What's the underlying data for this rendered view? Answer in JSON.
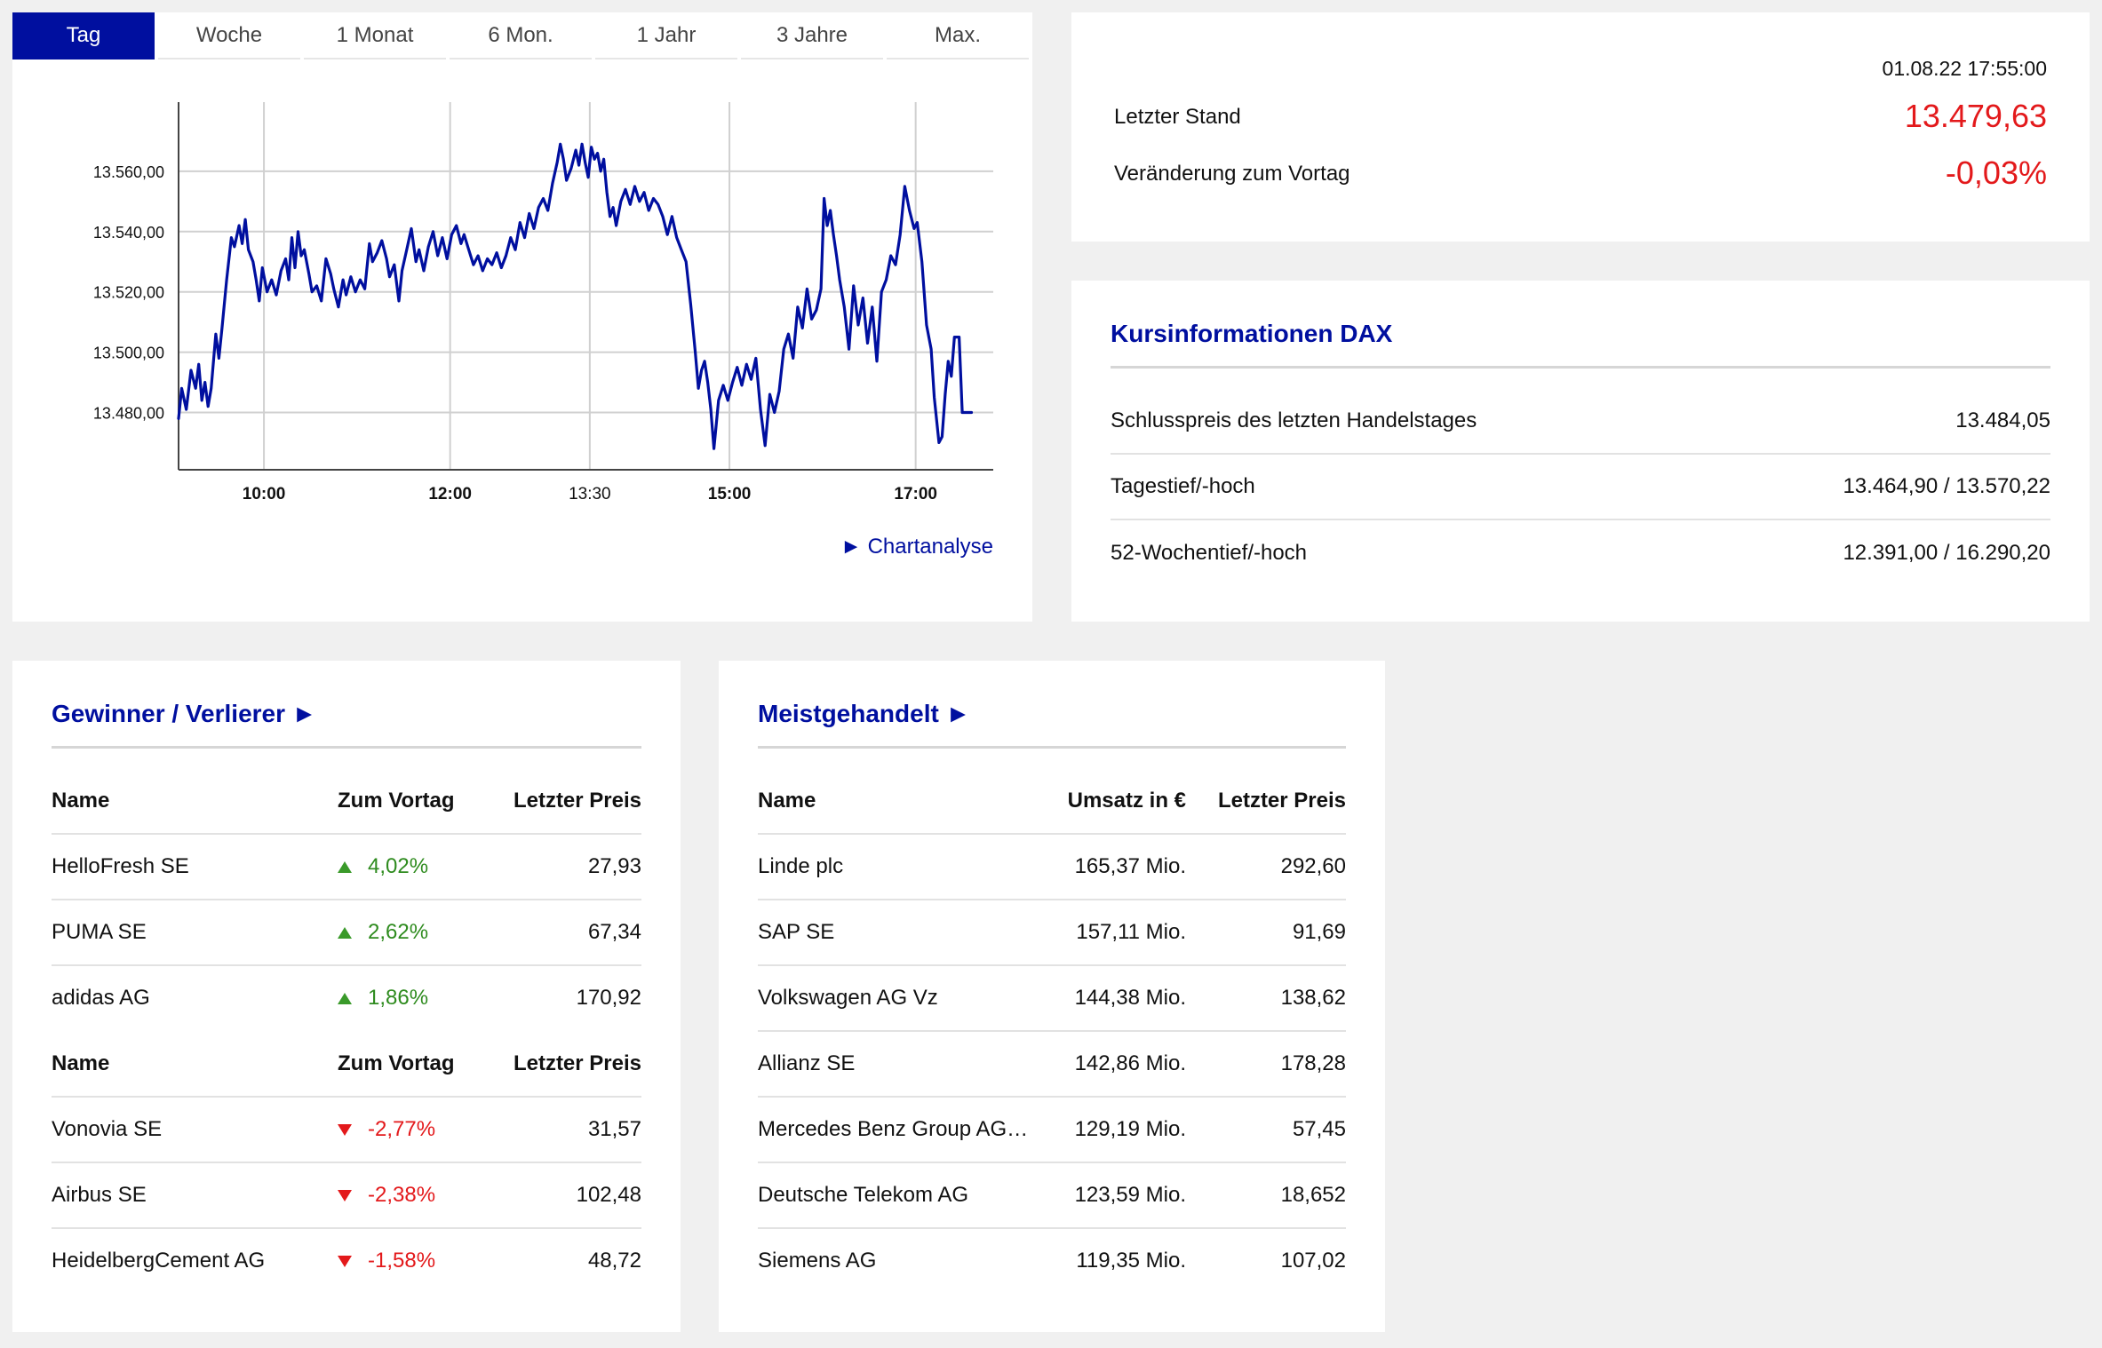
{
  "tabs": [
    "Tag",
    "Woche",
    "1 Monat",
    "6 Mon.",
    "1 Jahr",
    "3 Jahre",
    "Max."
  ],
  "active_tab": "Tag",
  "chart_link": "► Chartanalyse",
  "colors": {
    "accent": "#000f9f",
    "negative": "#e3191b",
    "positive": "#2e8b1e"
  },
  "chart_data": {
    "type": "line",
    "y_ticks": [
      "13.480,00",
      "13.500,00",
      "13.520,00",
      "13.540,00",
      "13.560,00"
    ],
    "y_tick_values": [
      13480,
      13500,
      13520,
      13540,
      13560
    ],
    "x_ticks": [
      {
        "label": "10:00",
        "t": "10:00",
        "bold": true
      },
      {
        "label": "12:00",
        "t": "12:00",
        "bold": true
      },
      {
        "label": "13:30",
        "t": "13:30",
        "bold": false
      },
      {
        "label": "15:00",
        "t": "15:00",
        "bold": true
      },
      {
        "label": "17:00",
        "t": "17:00",
        "bold": true
      }
    ],
    "xlim": [
      "09:05",
      "17:50"
    ],
    "ylim": [
      13461,
      13580
    ],
    "grid": true,
    "series": [
      {
        "color": "#000f9f",
        "points": [
          [
            "09:05",
            13478
          ],
          [
            "09:07",
            13488
          ],
          [
            "09:10",
            13481
          ],
          [
            "09:13",
            13494
          ],
          [
            "09:16",
            13488
          ],
          [
            "09:18",
            13496
          ],
          [
            "09:20",
            13484
          ],
          [
            "09:22",
            13490
          ],
          [
            "09:24",
            13482
          ],
          [
            "09:26",
            13488
          ],
          [
            "09:29",
            13506
          ],
          [
            "09:31",
            13498
          ],
          [
            "09:33",
            13508
          ],
          [
            "09:36",
            13524
          ],
          [
            "09:39",
            13538
          ],
          [
            "09:41",
            13535
          ],
          [
            "09:44",
            13542
          ],
          [
            "09:46",
            13536
          ],
          [
            "09:48",
            13544
          ],
          [
            "09:50",
            13534
          ],
          [
            "09:53",
            13530
          ],
          [
            "09:55",
            13524
          ],
          [
            "09:57",
            13517
          ],
          [
            "09:59",
            13528
          ],
          [
            "10:02",
            13520
          ],
          [
            "10:05",
            13524
          ],
          [
            "10:08",
            13519
          ],
          [
            "10:11",
            13527
          ],
          [
            "10:14",
            13531
          ],
          [
            "10:16",
            13524
          ],
          [
            "10:18",
            13538
          ],
          [
            "10:20",
            13528
          ],
          [
            "10:22",
            13540
          ],
          [
            "10:24",
            13532
          ],
          [
            "10:26",
            13534
          ],
          [
            "10:29",
            13526
          ],
          [
            "10:31",
            13520
          ],
          [
            "10:34",
            13522
          ],
          [
            "10:37",
            13517
          ],
          [
            "10:40",
            13531
          ],
          [
            "10:43",
            13526
          ],
          [
            "10:45",
            13521
          ],
          [
            "10:48",
            13515
          ],
          [
            "10:51",
            13524
          ],
          [
            "10:53",
            13519
          ],
          [
            "10:56",
            13525
          ],
          [
            "10:59",
            13520
          ],
          [
            "11:02",
            13524
          ],
          [
            "11:05",
            13521
          ],
          [
            "11:08",
            13536
          ],
          [
            "11:10",
            13530
          ],
          [
            "11:13",
            13533
          ],
          [
            "11:16",
            13537
          ],
          [
            "11:19",
            13531
          ],
          [
            "11:21",
            13525
          ],
          [
            "11:24",
            13529
          ],
          [
            "11:27",
            13517
          ],
          [
            "11:29",
            13527
          ],
          [
            "11:32",
            13534
          ],
          [
            "11:35",
            13541
          ],
          [
            "11:38",
            13530
          ],
          [
            "11:40",
            13534
          ],
          [
            "11:43",
            13527
          ],
          [
            "11:46",
            13535
          ],
          [
            "11:49",
            13540
          ],
          [
            "11:52",
            13532
          ],
          [
            "11:55",
            13538
          ],
          [
            "11:58",
            13531
          ],
          [
            "12:01",
            13539
          ],
          [
            "12:04",
            13542
          ],
          [
            "12:07",
            13536
          ],
          [
            "12:09",
            13539
          ],
          [
            "12:12",
            13534
          ],
          [
            "12:15",
            13529
          ],
          [
            "12:18",
            13532
          ],
          [
            "12:21",
            13527
          ],
          [
            "12:24",
            13531
          ],
          [
            "12:27",
            13529
          ],
          [
            "12:30",
            13533
          ],
          [
            "12:33",
            13528
          ],
          [
            "12:36",
            13532
          ],
          [
            "12:39",
            13538
          ],
          [
            "12:42",
            13534
          ],
          [
            "12:45",
            13543
          ],
          [
            "12:48",
            13538
          ],
          [
            "12:51",
            13546
          ],
          [
            "12:54",
            13541
          ],
          [
            "12:57",
            13548
          ],
          [
            "13:00",
            13551
          ],
          [
            "13:03",
            13547
          ],
          [
            "13:06",
            13556
          ],
          [
            "13:09",
            13563
          ],
          [
            "13:11",
            13569
          ],
          [
            "13:13",
            13564
          ],
          [
            "13:15",
            13557
          ],
          [
            "13:18",
            13561
          ],
          [
            "13:21",
            13567
          ],
          [
            "13:23",
            13562
          ],
          [
            "13:25",
            13569
          ],
          [
            "13:27",
            13563
          ],
          [
            "13:29",
            13558
          ],
          [
            "13:31",
            13568
          ],
          [
            "13:33",
            13564
          ],
          [
            "13:35",
            13566
          ],
          [
            "13:37",
            13560
          ],
          [
            "13:39",
            13564
          ],
          [
            "13:41",
            13553
          ],
          [
            "13:43",
            13545
          ],
          [
            "13:45",
            13548
          ],
          [
            "13:47",
            13542
          ],
          [
            "13:50",
            13550
          ],
          [
            "13:53",
            13554
          ],
          [
            "13:56",
            13549
          ],
          [
            "13:59",
            13555
          ],
          [
            "14:02",
            13550
          ],
          [
            "14:05",
            13553
          ],
          [
            "14:08",
            13547
          ],
          [
            "14:11",
            13551
          ],
          [
            "14:14",
            13549
          ],
          [
            "14:17",
            13545
          ],
          [
            "14:20",
            13539
          ],
          [
            "14:23",
            13545
          ],
          [
            "14:26",
            13538
          ],
          [
            "14:29",
            13534
          ],
          [
            "14:32",
            13530
          ],
          [
            "14:35",
            13516
          ],
          [
            "14:38",
            13500
          ],
          [
            "14:40",
            13488
          ],
          [
            "14:42",
            13494
          ],
          [
            "14:44",
            13497
          ],
          [
            "14:46",
            13490
          ],
          [
            "14:48",
            13481
          ],
          [
            "14:50",
            13468
          ],
          [
            "14:53",
            13484
          ],
          [
            "14:56",
            13489
          ],
          [
            "14:59",
            13484
          ],
          [
            "15:02",
            13490
          ],
          [
            "15:05",
            13495
          ],
          [
            "15:08",
            13489
          ],
          [
            "15:11",
            13496
          ],
          [
            "15:14",
            13491
          ],
          [
            "15:17",
            13498
          ],
          [
            "15:20",
            13481
          ],
          [
            "15:23",
            13469
          ],
          [
            "15:26",
            13486
          ],
          [
            "15:29",
            13480
          ],
          [
            "15:32",
            13487
          ],
          [
            "15:35",
            13501
          ],
          [
            "15:38",
            13506
          ],
          [
            "15:41",
            13498
          ],
          [
            "15:44",
            13515
          ],
          [
            "15:47",
            13508
          ],
          [
            "15:50",
            13521
          ],
          [
            "15:53",
            13511
          ],
          [
            "15:56",
            13514
          ],
          [
            "15:59",
            13521
          ],
          [
            "16:01",
            13551
          ],
          [
            "16:03",
            13542
          ],
          [
            "16:05",
            13547
          ],
          [
            "16:07",
            13539
          ],
          [
            "16:09",
            13532
          ],
          [
            "16:11",
            13524
          ],
          [
            "16:14",
            13515
          ],
          [
            "16:17",
            13501
          ],
          [
            "16:20",
            13522
          ],
          [
            "16:23",
            13509
          ],
          [
            "16:26",
            13518
          ],
          [
            "16:29",
            13503
          ],
          [
            "16:32",
            13515
          ],
          [
            "16:35",
            13497
          ],
          [
            "16:38",
            13520
          ],
          [
            "16:41",
            13524
          ],
          [
            "16:44",
            13532
          ],
          [
            "16:47",
            13529
          ],
          [
            "16:50",
            13539
          ],
          [
            "16:53",
            13555
          ],
          [
            "16:56",
            13547
          ],
          [
            "16:59",
            13541
          ],
          [
            "17:01",
            13543
          ],
          [
            "17:04",
            13530
          ],
          [
            "17:07",
            13509
          ],
          [
            "17:10",
            13501
          ],
          [
            "17:12",
            13485
          ],
          [
            "17:15",
            13470
          ],
          [
            "17:17",
            13472
          ],
          [
            "17:19",
            13486
          ],
          [
            "17:21",
            13497
          ],
          [
            "17:23",
            13492
          ],
          [
            "17:25",
            13505
          ],
          [
            "17:28",
            13505
          ],
          [
            "17:30",
            13480
          ],
          [
            "17:36",
            13480
          ]
        ]
      }
    ]
  },
  "quote": {
    "datetime": "01.08.22 17:55:00",
    "last_label": "Letzter Stand",
    "last_value": "13.479,63",
    "change_label": "Veränderung zum Vortag",
    "change_value": "-0,03%"
  },
  "info": {
    "title": "Kursinformationen DAX",
    "rows": [
      {
        "label": "Schlusspreis des letzten Handelstages",
        "value": "13.484,05"
      },
      {
        "label": "Tagestief/-hoch",
        "value": "13.464,90 / 13.570,22"
      },
      {
        "label": "52-Wochentief/-hoch",
        "value": "12.391,00 / 16.290,20"
      }
    ]
  },
  "winners_losers": {
    "title": "Gewinner / Verlierer ►",
    "headers": [
      "Name",
      "Zum Vortag",
      "Letzter Preis"
    ],
    "winners": [
      {
        "name": "HelloFresh SE",
        "change": "4,02%",
        "price": "27,93"
      },
      {
        "name": "PUMA SE",
        "change": "2,62%",
        "price": "67,34"
      },
      {
        "name": "adidas AG",
        "change": "1,86%",
        "price": "170,92"
      }
    ],
    "losers": [
      {
        "name": "Vonovia SE",
        "change": "-2,77%",
        "price": "31,57"
      },
      {
        "name": "Airbus SE",
        "change": "-2,38%",
        "price": "102,48"
      },
      {
        "name": "HeidelbergCement AG",
        "change": "-1,58%",
        "price": "48,72"
      }
    ]
  },
  "most_traded": {
    "title": "Meistgehandelt ►",
    "headers": [
      "Name",
      "Umsatz in €",
      "Letzter Preis"
    ],
    "rows": [
      {
        "name": "Linde plc",
        "volume": "165,37 Mio.",
        "price": "292,60"
      },
      {
        "name": "SAP SE",
        "volume": "157,11 Mio.",
        "price": "91,69"
      },
      {
        "name": "Volkswagen AG Vz",
        "volume": "144,38 Mio.",
        "price": "138,62"
      },
      {
        "name": "Allianz SE",
        "volume": "142,86 Mio.",
        "price": "178,28"
      },
      {
        "name": "Mercedes Benz Group AG…",
        "volume": "129,19 Mio.",
        "price": "57,45"
      },
      {
        "name": "Deutsche Telekom AG",
        "volume": "123,59 Mio.",
        "price": "18,652"
      },
      {
        "name": "Siemens AG",
        "volume": "119,35 Mio.",
        "price": "107,02"
      }
    ]
  }
}
